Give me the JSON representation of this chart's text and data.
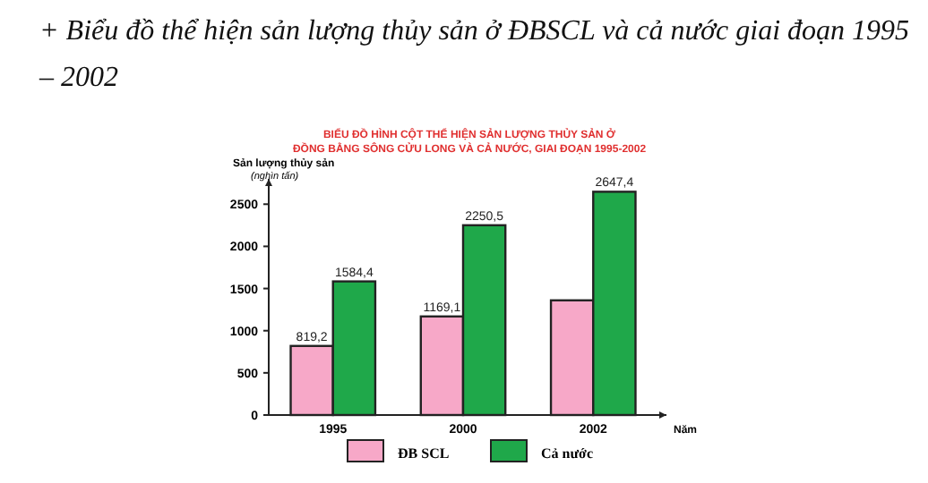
{
  "chart_data": {
    "type": "bar",
    "title": "+ Biểu đồ thể hiện sản lượng thủy sản ở ĐBSCL và cả nước giai đoạn 1995\n– 2002",
    "subtitle": "BIỂU ĐỒ HÌNH CỘT THỂ HIỆN SẢN LƯỢNG THỦY SẢN Ở\nĐỒNG BẰNG SÔNG CỬU LONG VÀ CẢ NƯỚC, GIAI ĐOẠN 1995-2002",
    "ylabel": "Sản lượng thủy sản\n(nghìn tấn)",
    "xlabel": "Năm",
    "categories": [
      "1995",
      "2000",
      "2002"
    ],
    "series": [
      {
        "name": "ĐB SCL",
        "color": "#f7a8c8",
        "values": [
          819.2,
          1169.1,
          1360
        ],
        "value_labels": [
          "819,2",
          "1169,1",
          null
        ]
      },
      {
        "name": "Cả nước",
        "color": "#1fa84a",
        "values": [
          1584.4,
          2250.5,
          2647.4
        ],
        "value_labels": [
          "1584,4",
          "2250,5",
          "2647,4"
        ]
      }
    ],
    "ylim": [
      0,
      2800
    ],
    "yticks": [
      0,
      500,
      1000,
      1500,
      2000,
      2500
    ],
    "legend": "bottom",
    "grid": false
  }
}
